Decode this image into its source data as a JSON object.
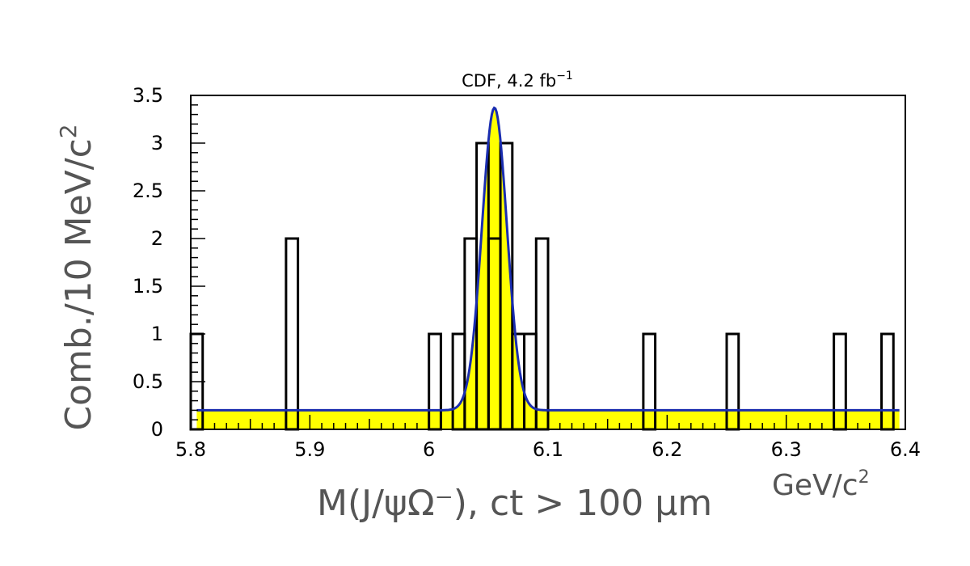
{
  "chart_data": {
    "type": "bar",
    "title": "CDF, 4.2 fb",
    "title_superscript": "−1",
    "xlabel": "M(J/ψΩ⁻), ct > 100 μm",
    "xunit": "GeV/c",
    "xunit_superscript": "2",
    "ylabel": "Comb./10 MeV/c",
    "ylabel_superscript": "2",
    "xlim": [
      5.8,
      6.4
    ],
    "ylim": [
      0,
      3.5
    ],
    "x_ticks": [
      "5.8",
      "5.9",
      "6",
      "6.1",
      "6.2",
      "6.3",
      "6.4"
    ],
    "y_ticks": [
      "0",
      "0.5",
      "1",
      "1.5",
      "2",
      "2.5",
      "3",
      "3.5"
    ],
    "histogram": {
      "bin_width": 0.01,
      "bins": [
        {
          "low": 5.8,
          "count": 1
        },
        {
          "low": 5.88,
          "count": 2
        },
        {
          "low": 6.0,
          "count": 1
        },
        {
          "low": 6.02,
          "count": 1
        },
        {
          "low": 6.03,
          "count": 2
        },
        {
          "low": 6.04,
          "count": 3
        },
        {
          "low": 6.05,
          "count": 2
        },
        {
          "low": 6.06,
          "count": 3
        },
        {
          "low": 6.07,
          "count": 1
        },
        {
          "low": 6.08,
          "count": 1
        },
        {
          "low": 6.09,
          "count": 2
        },
        {
          "low": 6.18,
          "count": 1
        },
        {
          "low": 6.25,
          "count": 1
        },
        {
          "low": 6.34,
          "count": 1
        },
        {
          "low": 6.38,
          "count": 1
        }
      ]
    },
    "fit": {
      "type": "gaussian_plus_constant",
      "background": 0.2,
      "amplitude": 3.17,
      "mean": 6.055,
      "sigma": 0.0105,
      "x_range": [
        5.805,
        6.395
      ],
      "line_color": "#1a2db0",
      "fill_color": "#ffff00"
    }
  }
}
